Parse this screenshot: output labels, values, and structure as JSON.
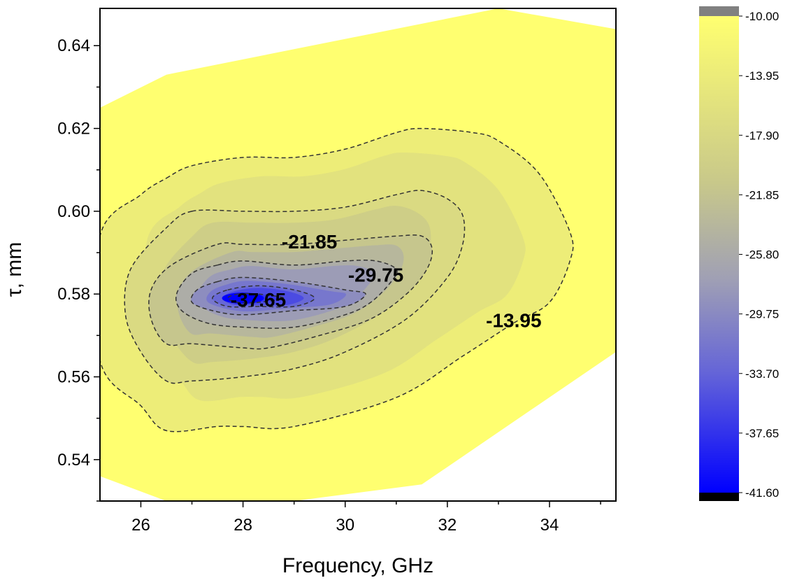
{
  "chart_data": {
    "type": "contour",
    "xlabel": "Frequency, GHz",
    "ylabel": "τ, mm",
    "xlim": [
      25.2,
      35.3
    ],
    "ylim": [
      0.53,
      0.649
    ],
    "x_ticks": [
      26,
      28,
      30,
      32,
      34
    ],
    "y_ticks": [
      0.54,
      0.56,
      0.58,
      0.6,
      0.62,
      0.64
    ],
    "x_tick_labels": [
      "26",
      "28",
      "30",
      "32",
      "34"
    ],
    "y_tick_labels": [
      "0.54",
      "0.56",
      "0.58",
      "0.60",
      "0.62",
      "0.64"
    ],
    "z_minimum": {
      "x": 28.0,
      "y": 0.579,
      "z": -41.6
    },
    "data_region": [
      [
        25.2,
        0.625
      ],
      [
        26.5,
        0.633
      ],
      [
        33.0,
        0.649
      ],
      [
        35.3,
        0.644
      ],
      [
        35.3,
        0.566
      ],
      [
        31.5,
        0.534
      ],
      [
        29.0,
        0.53
      ],
      [
        26.5,
        0.53
      ],
      [
        25.2,
        0.536
      ]
    ],
    "contour_lines": [
      {
        "level": -13.95,
        "points": [
          [
            26.5,
            0.608
          ],
          [
            27.0,
            0.611
          ],
          [
            28.0,
            0.613
          ],
          [
            29.0,
            0.613
          ],
          [
            30.0,
            0.615
          ],
          [
            31.0,
            0.619
          ],
          [
            31.5,
            0.62
          ],
          [
            32.5,
            0.619
          ],
          [
            33.0,
            0.617
          ],
          [
            33.8,
            0.609
          ],
          [
            34.4,
            0.595
          ],
          [
            34.4,
            0.588
          ],
          [
            34.0,
            0.578
          ],
          [
            33.3,
            0.573
          ],
          [
            32.3,
            0.565
          ],
          [
            31.0,
            0.555
          ],
          [
            29.0,
            0.548
          ],
          [
            28.0,
            0.548
          ],
          [
            27.5,
            0.548
          ],
          [
            26.5,
            0.547
          ],
          [
            26.0,
            0.553
          ],
          [
            25.2,
            0.564
          ],
          [
            25.2,
            0.594
          ],
          [
            26.0,
            0.604
          ]
        ],
        "closed": true
      },
      {
        "level": -17.9,
        "points": [
          [
            27.0,
            0.6
          ],
          [
            28.0,
            0.6
          ],
          [
            29.0,
            0.6
          ],
          [
            30.0,
            0.601
          ],
          [
            31.0,
            0.604
          ],
          [
            31.5,
            0.605
          ],
          [
            32.0,
            0.603
          ],
          [
            32.3,
            0.599
          ],
          [
            32.3,
            0.592
          ],
          [
            32.0,
            0.584
          ],
          [
            31.2,
            0.574
          ],
          [
            30.0,
            0.566
          ],
          [
            29.0,
            0.562
          ],
          [
            28.0,
            0.56
          ],
          [
            27.0,
            0.559
          ],
          [
            26.5,
            0.559
          ],
          [
            26.0,
            0.566
          ],
          [
            25.7,
            0.575
          ],
          [
            25.8,
            0.586
          ],
          [
            26.5,
            0.596
          ]
        ],
        "closed": true
      },
      {
        "level": -21.85,
        "points": [
          [
            27.5,
            0.592
          ],
          [
            28.0,
            0.592
          ],
          [
            29.0,
            0.592
          ],
          [
            30.0,
            0.593
          ],
          [
            31.0,
            0.594
          ],
          [
            31.5,
            0.594
          ],
          [
            31.7,
            0.591
          ],
          [
            31.6,
            0.586
          ],
          [
            31.2,
            0.58
          ],
          [
            30.5,
            0.574
          ],
          [
            29.5,
            0.57
          ],
          [
            28.5,
            0.567
          ],
          [
            28.0,
            0.567
          ],
          [
            27.0,
            0.568
          ],
          [
            26.5,
            0.568
          ],
          [
            26.2,
            0.574
          ],
          [
            26.2,
            0.581
          ],
          [
            26.6,
            0.587
          ]
        ],
        "closed": true
      },
      {
        "level": -25.8,
        "points": [
          [
            27.5,
            0.587
          ],
          [
            28.0,
            0.588
          ],
          [
            29.0,
            0.587
          ],
          [
            30.0,
            0.588
          ],
          [
            30.6,
            0.588
          ],
          [
            31.0,
            0.586
          ],
          [
            30.9,
            0.583
          ],
          [
            30.5,
            0.578
          ],
          [
            30.0,
            0.575
          ],
          [
            29.0,
            0.572
          ],
          [
            28.0,
            0.572
          ],
          [
            27.3,
            0.573
          ],
          [
            26.8,
            0.576
          ],
          [
            26.7,
            0.58
          ],
          [
            27.0,
            0.585
          ]
        ],
        "closed": true
      },
      {
        "level": -29.75,
        "points": [
          [
            27.5,
            0.583
          ],
          [
            28.0,
            0.584
          ],
          [
            29.0,
            0.583
          ],
          [
            30.0,
            0.581
          ],
          [
            30.4,
            0.58
          ],
          [
            30.0,
            0.577
          ],
          [
            29.0,
            0.576
          ],
          [
            28.0,
            0.575
          ],
          [
            27.4,
            0.576
          ],
          [
            27.0,
            0.578
          ],
          [
            27.1,
            0.581
          ]
        ],
        "closed": true
      },
      {
        "level": -33.7,
        "points": [
          [
            27.7,
            0.581
          ],
          [
            28.3,
            0.582
          ],
          [
            29.0,
            0.581
          ],
          [
            29.4,
            0.579
          ],
          [
            29.0,
            0.577
          ],
          [
            28.3,
            0.577
          ],
          [
            27.7,
            0.577
          ],
          [
            27.4,
            0.579
          ]
        ],
        "closed": true
      },
      {
        "level": -37.65,
        "points": [
          [
            27.9,
            0.58
          ],
          [
            28.3,
            0.58
          ],
          [
            28.8,
            0.579
          ],
          [
            28.3,
            0.578
          ],
          [
            27.9,
            0.578
          ],
          [
            27.7,
            0.579
          ]
        ],
        "closed": true
      }
    ],
    "contour_labels": [
      {
        "text": "-21.85",
        "x": 29.3,
        "y": 0.591
      },
      {
        "text": "-29.75",
        "x": 30.6,
        "y": 0.583
      },
      {
        "text": "-37.65",
        "x": 28.3,
        "y": 0.577
      },
      {
        "text": "-13.95",
        "x": 33.3,
        "y": 0.572
      }
    ],
    "colorbar": {
      "min": -41.6,
      "max": -10.0,
      "levels": [
        "-10.00",
        "-13.95",
        "-17.90",
        "-21.85",
        "-25.80",
        "-29.75",
        "-33.70",
        "-37.65",
        "-41.60"
      ],
      "colors": {
        "high": "#ffff70",
        "mid": "#a7a7a7",
        "low": "#0000ff",
        "over": "#808080",
        "under": "#000000"
      }
    }
  }
}
